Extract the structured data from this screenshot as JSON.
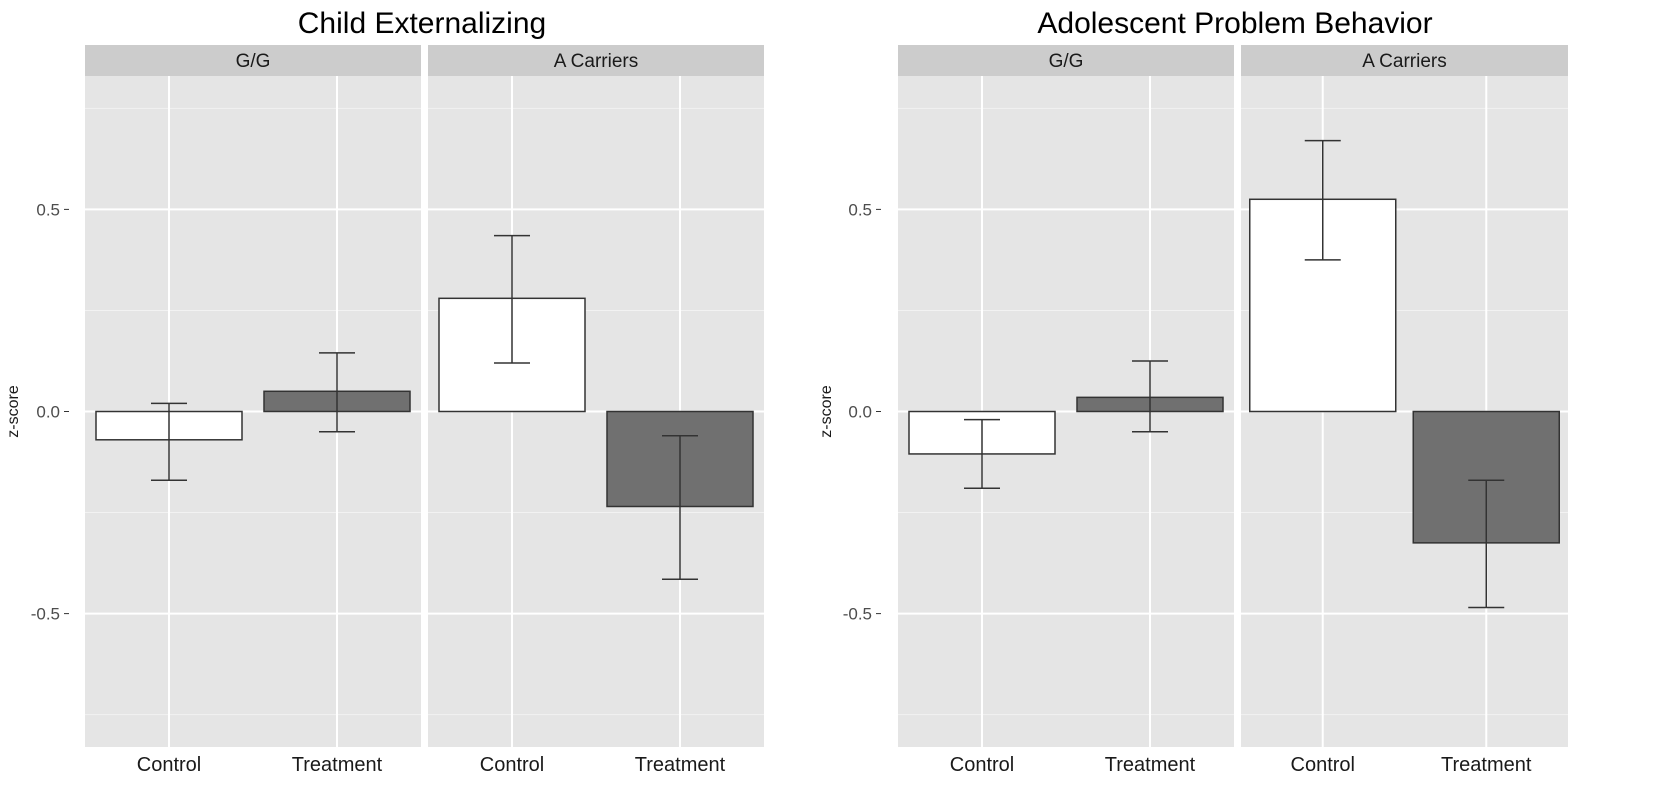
{
  "colors": {
    "panel_bg": "#e5e5e5",
    "strip_bg": "#cccccc",
    "grid_major": "#ffffff",
    "grid_minor": "#f2f2f2",
    "control_fill": "#ffffff",
    "treatment_fill": "#707070",
    "outline": "#333333",
    "text": "#1a1a1a",
    "tick_text": "#4d4d4d"
  },
  "chart_data": [
    {
      "type": "bar",
      "title": "Child Externalizing",
      "ylabel": "z-score",
      "ylim": [
        -0.83,
        0.83
      ],
      "yticks": [
        "0.5",
        "0.0",
        "-0.5"
      ],
      "categories": [
        "Control",
        "Treatment"
      ],
      "facets": [
        {
          "strip": "G/G",
          "bars": [
            {
              "category": "Control",
              "value": -0.07,
              "lower": -0.17,
              "upper": 0.02
            },
            {
              "category": "Treatment",
              "value": 0.05,
              "lower": -0.05,
              "upper": 0.145
            }
          ]
        },
        {
          "strip": "A Carriers",
          "bars": [
            {
              "category": "Control",
              "value": 0.28,
              "lower": 0.12,
              "upper": 0.435
            },
            {
              "category": "Treatment",
              "value": -0.235,
              "lower": -0.415,
              "upper": -0.06
            }
          ]
        }
      ]
    },
    {
      "type": "bar",
      "title": "Adolescent Problem Behavior",
      "ylabel": "z-score",
      "ylim": [
        -0.83,
        0.83
      ],
      "yticks": [
        "0.5",
        "0.0",
        "-0.5"
      ],
      "categories": [
        "Control",
        "Treatment"
      ],
      "facets": [
        {
          "strip": "G/G",
          "bars": [
            {
              "category": "Control",
              "value": -0.105,
              "lower": -0.19,
              "upper": -0.02
            },
            {
              "category": "Treatment",
              "value": 0.035,
              "lower": -0.05,
              "upper": 0.125
            }
          ]
        },
        {
          "strip": "A Carriers",
          "bars": [
            {
              "category": "Control",
              "value": 0.525,
              "lower": 0.375,
              "upper": 0.67
            },
            {
              "category": "Treatment",
              "value": -0.325,
              "lower": -0.485,
              "upper": -0.17
            }
          ]
        }
      ]
    }
  ]
}
